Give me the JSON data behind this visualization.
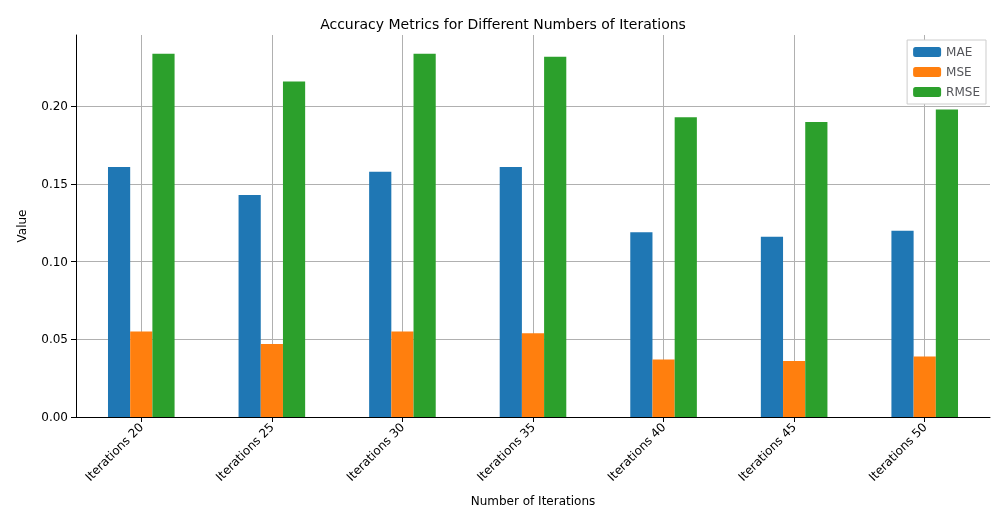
{
  "chart_data": {
    "type": "bar",
    "title": "Accuracy Metrics for Different Numbers of Iterations",
    "xlabel": "Number of Iterations",
    "ylabel": "Value",
    "categories": [
      "Iterations 20",
      "Iterations 25",
      "Iterations 30",
      "Iterations 35",
      "Iterations 40",
      "Iterations 45",
      "Iterations 50"
    ],
    "series": [
      {
        "name": "MAE",
        "color": "#1f77b4",
        "values": [
          0.161,
          0.143,
          0.158,
          0.161,
          0.119,
          0.116,
          0.12
        ]
      },
      {
        "name": "MSE",
        "color": "#ff7f0e",
        "values": [
          0.055,
          0.047,
          0.055,
          0.054,
          0.037,
          0.036,
          0.039
        ]
      },
      {
        "name": "RMSE",
        "color": "#2ca02c",
        "values": [
          0.234,
          0.216,
          0.234,
          0.232,
          0.193,
          0.19,
          0.198
        ]
      }
    ],
    "ylim": [
      0,
      0.246
    ],
    "yticks": [
      {
        "value": 0,
        "label": "0.00"
      },
      {
        "value": 0.05,
        "label": "0.05"
      },
      {
        "value": 0.1,
        "label": "0.10"
      },
      {
        "value": 0.15,
        "label": "0.15"
      },
      {
        "value": 0.2,
        "label": "0.20"
      }
    ],
    "grid": true,
    "legend": "top right"
  }
}
